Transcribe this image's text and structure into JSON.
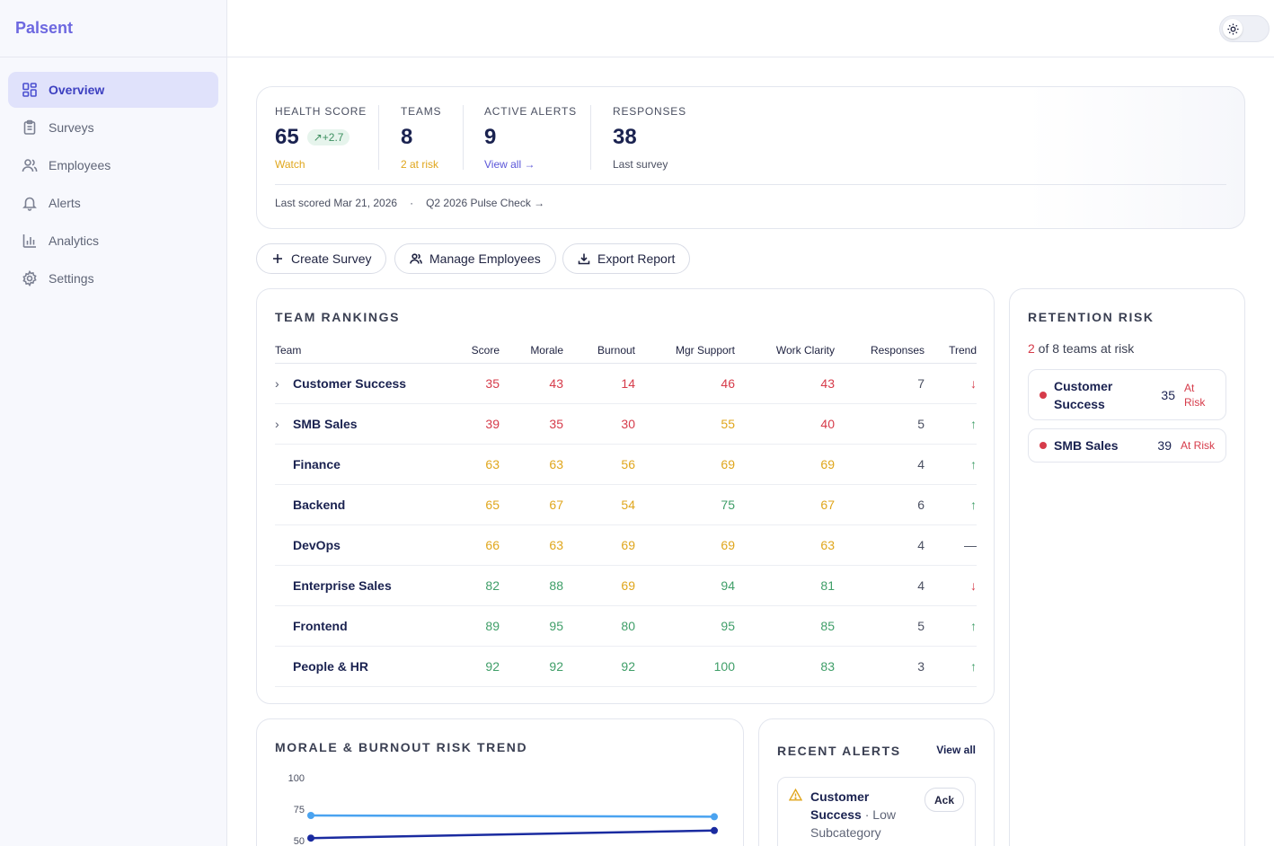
{
  "app": {
    "name": "Palsent"
  },
  "sidebar": {
    "items": [
      {
        "label": "Overview",
        "icon": "grid-icon",
        "active": true
      },
      {
        "label": "Surveys",
        "icon": "clipboard-icon"
      },
      {
        "label": "Employees",
        "icon": "users-icon"
      },
      {
        "label": "Alerts",
        "icon": "bell-icon"
      },
      {
        "label": "Analytics",
        "icon": "bar-chart-icon"
      },
      {
        "label": "Settings",
        "icon": "gear-icon"
      }
    ]
  },
  "header": {
    "theme_toggle_icon": "sun-icon"
  },
  "stats": {
    "health": {
      "label": "HEALTH SCORE",
      "value": "65",
      "delta": "+2.7",
      "sub": "Watch"
    },
    "teams": {
      "label": "TEAMS",
      "value": "8",
      "sub": "2 at risk"
    },
    "alerts": {
      "label": "ACTIVE ALERTS",
      "value": "9",
      "sub": "View all →"
    },
    "responses": {
      "label": "RESPONSES",
      "value": "38",
      "sub": "Last survey"
    },
    "last_scored": "Last scored Mar 21, 2026",
    "separator": "·",
    "survey_link": "Q2 2026 Pulse Check →"
  },
  "actions": {
    "create": "Create Survey",
    "manage": "Manage Employees",
    "export": "Export Report"
  },
  "rankings": {
    "title": "TEAM RANKINGS",
    "columns": [
      "Team",
      "Score",
      "Morale",
      "Burnout",
      "Mgr Support",
      "Work Clarity",
      "Responses",
      "Trend"
    ]
  },
  "retention": {
    "title": "RETENTION RISK",
    "count": "2",
    "summary": " of 8 teams at risk",
    "items": [
      {
        "name_line1": "Customer",
        "name_line2": "Success",
        "score": "35",
        "tag_line1": "At",
        "tag_line2": "Risk"
      },
      {
        "name": "SMB Sales",
        "score": "39",
        "tag": "At Risk"
      }
    ]
  },
  "trend_chart": {
    "title": "MORALE & BURNOUT RISK TREND"
  },
  "recent_alerts": {
    "title": "RECENT ALERTS",
    "view_all": "View all",
    "items": [
      {
        "team_line1": "Customer",
        "team_line2": "Success",
        "sep": " · ",
        "desc_line1": "Low",
        "desc_line2": "Subcategory",
        "ack": "Ack"
      }
    ]
  },
  "colors": {
    "accent": "#6d68e0",
    "danger": "#d63b4a",
    "warning": "#e0a61c",
    "success": "#3f9e68",
    "morale_line": "#4aa3f0",
    "burnout_line": "#1a2ba0"
  },
  "chart_data": {
    "type": "line",
    "title": "MORALE & BURNOUT RISK TREND",
    "y_ticks": [
      100,
      75,
      50
    ],
    "ylim": [
      50,
      100
    ],
    "series": [
      {
        "values": [
          70,
          69
        ]
      },
      {
        "values": [
          52,
          58
        ]
      }
    ]
  },
  "rows": [
    {
      "team": "Customer Success",
      "expand": true,
      "score": 35,
      "morale": 43,
      "burnout": 14,
      "mgr": 46,
      "clarity": 43,
      "responses": 7,
      "trend": "↓"
    },
    {
      "team": "SMB Sales",
      "expand": true,
      "score": 39,
      "morale": 35,
      "burnout": 30,
      "mgr": 55,
      "clarity": 40,
      "responses": 5,
      "trend": "↑"
    },
    {
      "team": "Finance",
      "expand": false,
      "score": 63,
      "morale": 63,
      "burnout": 56,
      "mgr": 69,
      "clarity": 69,
      "responses": 4,
      "trend": "↑"
    },
    {
      "team": "Backend",
      "expand": false,
      "score": 65,
      "morale": 67,
      "burnout": 54,
      "mgr": 75,
      "clarity": 67,
      "responses": 6,
      "trend": "↑"
    },
    {
      "team": "DevOps",
      "expand": false,
      "score": 66,
      "morale": 63,
      "burnout": 69,
      "mgr": 69,
      "clarity": 63,
      "responses": 4,
      "trend": "—"
    },
    {
      "team": "Enterprise Sales",
      "expand": false,
      "score": 82,
      "morale": 88,
      "burnout": 69,
      "mgr": 94,
      "clarity": 81,
      "responses": 4,
      "trend": "↓"
    },
    {
      "team": "Frontend",
      "expand": false,
      "score": 89,
      "morale": 95,
      "burnout": 80,
      "mgr": 95,
      "clarity": 85,
      "responses": 5,
      "trend": "↑"
    },
    {
      "team": "People & HR",
      "expand": false,
      "score": 92,
      "morale": 92,
      "burnout": 92,
      "mgr": 100,
      "clarity": 83,
      "responses": 3,
      "trend": "↑"
    }
  ]
}
